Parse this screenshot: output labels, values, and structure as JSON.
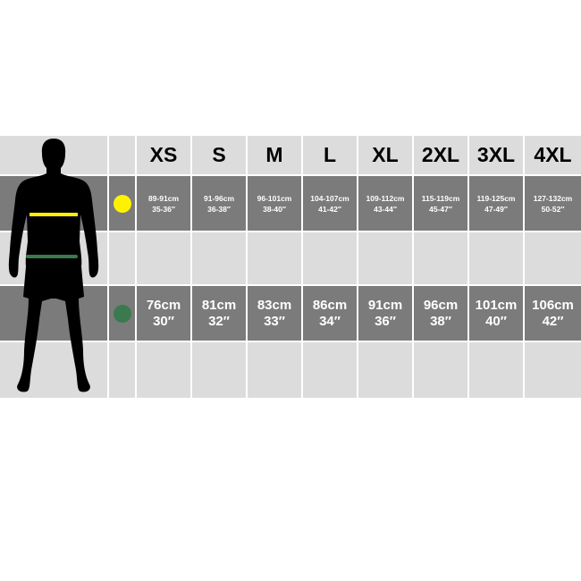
{
  "sizes": [
    "XS",
    "S",
    "M",
    "L",
    "XL",
    "2XL",
    "3XL",
    "4XL"
  ],
  "chest": {
    "marker_color": "#fff200",
    "cm": [
      "89-91cm",
      "91-96cm",
      "96-101cm",
      "104-107cm",
      "109-112cm",
      "115-119cm",
      "119-125cm",
      "127-132cm"
    ],
    "inch": [
      "35-36″",
      "36-38″",
      "38-40″",
      "41-42″",
      "43-44″",
      "45-47″",
      "47-49″",
      "50-52″"
    ]
  },
  "waist": {
    "marker_color": "#3a7a4e",
    "cm": [
      "76cm",
      "81cm",
      "83cm",
      "86cm",
      "91cm",
      "96cm",
      "101cm",
      "106cm"
    ],
    "inch": [
      "30″",
      "32″",
      "33″",
      "34″",
      "36″",
      "38″",
      "40″",
      "42″"
    ]
  }
}
